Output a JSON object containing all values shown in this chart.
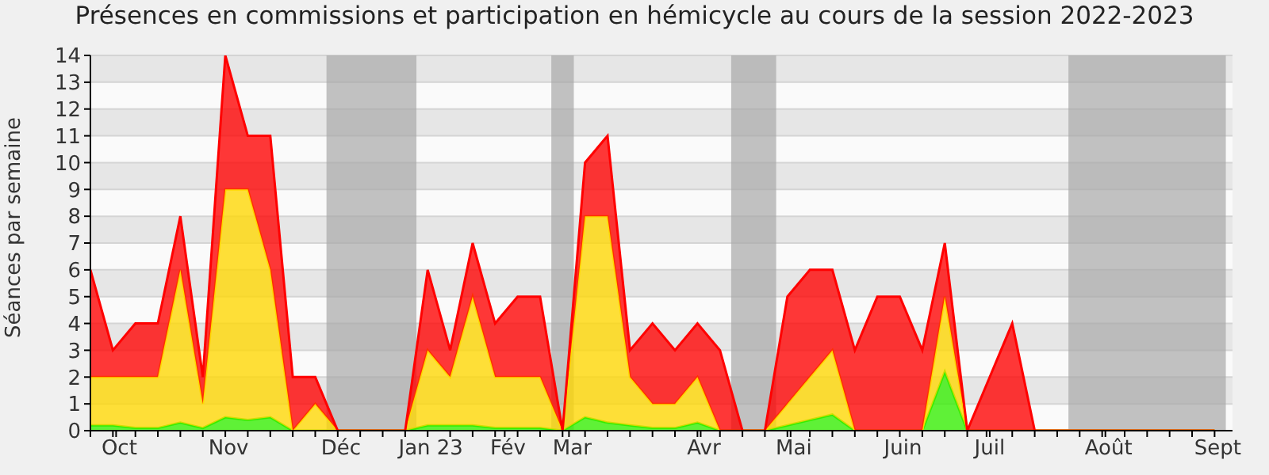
{
  "chart_data": {
    "type": "area",
    "stacked": true,
    "title": "Présences en commissions et participation en hémicycle au cours de la session 2022-2023",
    "ylabel": "Séances par semaine",
    "x": [
      "2022-10-03",
      "2022-10-10",
      "2022-10-17",
      "2022-10-24",
      "2022-10-31",
      "2022-11-07",
      "2022-11-14",
      "2022-11-21",
      "2022-11-28",
      "2022-12-05",
      "2022-12-12",
      "2022-12-19",
      "2022-12-26",
      "2023-01-02",
      "2023-01-09",
      "2023-01-16",
      "2023-01-23",
      "2023-01-30",
      "2023-02-06",
      "2023-02-13",
      "2023-02-20",
      "2023-02-27",
      "2023-03-06",
      "2023-03-13",
      "2023-03-20",
      "2023-03-27",
      "2023-04-03",
      "2023-04-10",
      "2023-04-17",
      "2023-04-24",
      "2023-05-01",
      "2023-05-08",
      "2023-05-15",
      "2023-05-22",
      "2023-05-29",
      "2023-06-05",
      "2023-06-12",
      "2023-06-19",
      "2023-06-26",
      "2023-07-03",
      "2023-07-10",
      "2023-07-17",
      "2023-07-24",
      "2023-07-31",
      "2023-08-07",
      "2023-08-14",
      "2023-08-21",
      "2023-08-28",
      "2023-09-04",
      "2023-09-11",
      "2023-09-18"
    ],
    "series": [
      {
        "color": "#33ee00",
        "values": [
          0.2,
          0.2,
          0.1,
          0.1,
          0.3,
          0.1,
          0.5,
          0.4,
          0.5,
          0,
          0,
          0,
          0,
          0,
          0,
          0.2,
          0.2,
          0.2,
          0.1,
          0.1,
          0.1,
          0,
          0.5,
          0.3,
          0.2,
          0.1,
          0.1,
          0.3,
          0,
          0,
          0,
          0.2,
          0.4,
          0.6,
          0,
          0,
          0,
          0,
          2.2,
          0,
          0,
          0,
          0,
          0,
          0,
          0,
          0,
          0,
          0,
          0,
          0
        ]
      },
      {
        "color": "#ffd700",
        "values": [
          1.8,
          1.8,
          1.9,
          1.9,
          5.7,
          0.9,
          8.5,
          8.6,
          5.5,
          0,
          1,
          0,
          0,
          0,
          0,
          2.8,
          1.8,
          4.8,
          1.9,
          1.9,
          1.9,
          0,
          7.5,
          7.7,
          1.8,
          0.9,
          0.9,
          1.7,
          0,
          0,
          0,
          0.8,
          1.6,
          2.4,
          0,
          0,
          0,
          0,
          2.8,
          0,
          0,
          0,
          0,
          0,
          0,
          0,
          0,
          0,
          0,
          0,
          0
        ]
      },
      {
        "color": "#ff0000",
        "values": [
          4,
          1,
          2,
          2,
          2,
          1,
          5,
          2,
          5,
          2,
          1,
          0,
          0,
          0,
          0,
          3,
          1,
          2,
          2,
          3,
          3,
          0,
          2,
          3,
          1,
          3,
          2,
          2,
          3,
          0,
          0,
          4,
          4,
          3,
          3,
          5,
          5,
          3,
          2,
          0,
          2,
          4,
          0,
          0,
          0,
          0,
          0,
          0,
          0,
          0,
          0
        ]
      }
    ],
    "xlim": [
      "2022-10-03",
      "2023-09-23T14:00"
    ],
    "xticks": [
      {
        "value": "2022-10-03",
        "label": null
      },
      {
        "value": "2022-10-10",
        "label": null
      },
      {
        "value": "2022-10-11",
        "label": "Oct"
      },
      {
        "value": "2022-10-17",
        "label": null
      },
      {
        "value": "2022-10-24",
        "label": null
      },
      {
        "value": "2022-10-31",
        "label": null
      },
      {
        "value": "2022-11-07",
        "label": null
      },
      {
        "value": "2022-11-14",
        "label": "Nov"
      },
      {
        "value": "2022-11-21",
        "label": null
      },
      {
        "value": "2022-11-28",
        "label": null
      },
      {
        "value": "2022-12-05",
        "label": null
      },
      {
        "value": "2022-12-12",
        "label": null
      },
      {
        "value": "2022-12-19",
        "label": "Déc"
      },
      {
        "value": "2022-12-26",
        "label": null
      },
      {
        "value": "2023-01-02",
        "label": null
      },
      {
        "value": "2023-01-09",
        "label": null
      },
      {
        "value": "2023-01-16",
        "label": "Jan 23"
      },
      {
        "value": "2023-01-23",
        "label": null
      },
      {
        "value": "2023-01-30",
        "label": null
      },
      {
        "value": "2023-02-06",
        "label": null
      },
      {
        "value": "2023-02-09",
        "label": "Fév"
      },
      {
        "value": "2023-02-13",
        "label": null
      },
      {
        "value": "2023-02-20",
        "label": null
      },
      {
        "value": "2023-02-27",
        "label": null
      },
      {
        "value": "2023-03-01",
        "label": "Mar"
      },
      {
        "value": "2023-03-06",
        "label": null
      },
      {
        "value": "2023-03-13",
        "label": null
      },
      {
        "value": "2023-03-20",
        "label": null
      },
      {
        "value": "2023-03-27",
        "label": null
      },
      {
        "value": "2023-04-03",
        "label": null
      },
      {
        "value": "2023-04-10",
        "label": null
      },
      {
        "value": "2023-04-11",
        "label": "Avr"
      },
      {
        "value": "2023-04-17",
        "label": null
      },
      {
        "value": "2023-04-24",
        "label": null
      },
      {
        "value": "2023-05-01",
        "label": null
      },
      {
        "value": "2023-05-08",
        "label": null
      },
      {
        "value": "2023-05-09",
        "label": "Mai"
      },
      {
        "value": "2023-05-15",
        "label": null
      },
      {
        "value": "2023-05-22",
        "label": null
      },
      {
        "value": "2023-05-29",
        "label": null
      },
      {
        "value": "2023-06-05",
        "label": null
      },
      {
        "value": "2023-06-12",
        "label": "Juin"
      },
      {
        "value": "2023-06-19",
        "label": null
      },
      {
        "value": "2023-06-26",
        "label": null
      },
      {
        "value": "2023-07-03",
        "label": null
      },
      {
        "value": "2023-07-09",
        "label": "Juil"
      },
      {
        "value": "2023-07-10",
        "label": null
      },
      {
        "value": "2023-07-17",
        "label": null
      },
      {
        "value": "2023-07-24",
        "label": null
      },
      {
        "value": "2023-07-31",
        "label": null
      },
      {
        "value": "2023-08-07",
        "label": null
      },
      {
        "value": "2023-08-14",
        "label": null
      },
      {
        "value": "2023-08-15",
        "label": "Août"
      },
      {
        "value": "2023-08-21",
        "label": null
      },
      {
        "value": "2023-08-28",
        "label": null
      },
      {
        "value": "2023-09-04",
        "label": null
      },
      {
        "value": "2023-09-11",
        "label": null
      },
      {
        "value": "2023-09-18",
        "label": "Sept"
      }
    ],
    "ylim": [
      0,
      14
    ],
    "yticks": [
      0,
      1,
      2,
      3,
      4,
      5,
      6,
      7,
      8,
      9,
      10,
      11,
      12,
      13,
      14
    ],
    "grid": "y",
    "bands": [
      {
        "axis": "x",
        "from": "2022-12-15T12:00",
        "to": "2023-01-12T12:00",
        "color": "#a8a8a8"
      },
      {
        "axis": "x",
        "from": "2023-02-23T12:00",
        "to": "2023-03-02T12:00",
        "color": "#a8a8a8"
      },
      {
        "axis": "x",
        "from": "2023-04-20T12:00",
        "to": "2023-05-04T12:00",
        "color": "#a8a8a8"
      },
      {
        "axis": "x",
        "from": "2023-08-03T12:00",
        "to": "2023-09-21T12:00",
        "color": "#a8a8a8"
      }
    ]
  }
}
